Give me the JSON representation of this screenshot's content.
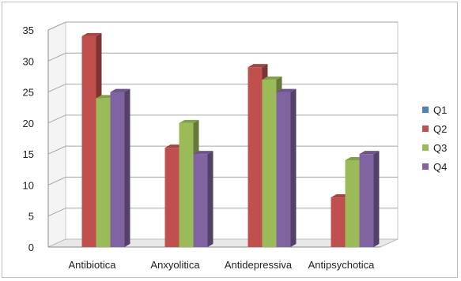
{
  "chart_data": {
    "type": "bar",
    "categories": [
      "Antibiotica",
      "Anxyolitica",
      "Antidepressiva",
      "Antipsychotica"
    ],
    "series": [
      {
        "name": "Q1",
        "color": "#4f81bd",
        "values": [
          0,
          0,
          0,
          0
        ]
      },
      {
        "name": "Q2",
        "color": "#c0504d",
        "values": [
          34,
          16,
          29,
          8
        ]
      },
      {
        "name": "Q3",
        "color": "#9bbb59",
        "values": [
          24,
          20,
          27,
          14
        ]
      },
      {
        "name": "Q4",
        "color": "#8064a2",
        "values": [
          25,
          15,
          25,
          15
        ]
      }
    ],
    "ylim": [
      0,
      35
    ],
    "yticks": [
      "0",
      "5",
      "10",
      "15",
      "20",
      "25",
      "30",
      "35"
    ],
    "grid": true,
    "legend_position": "right",
    "style": "3d-clustered-column"
  }
}
